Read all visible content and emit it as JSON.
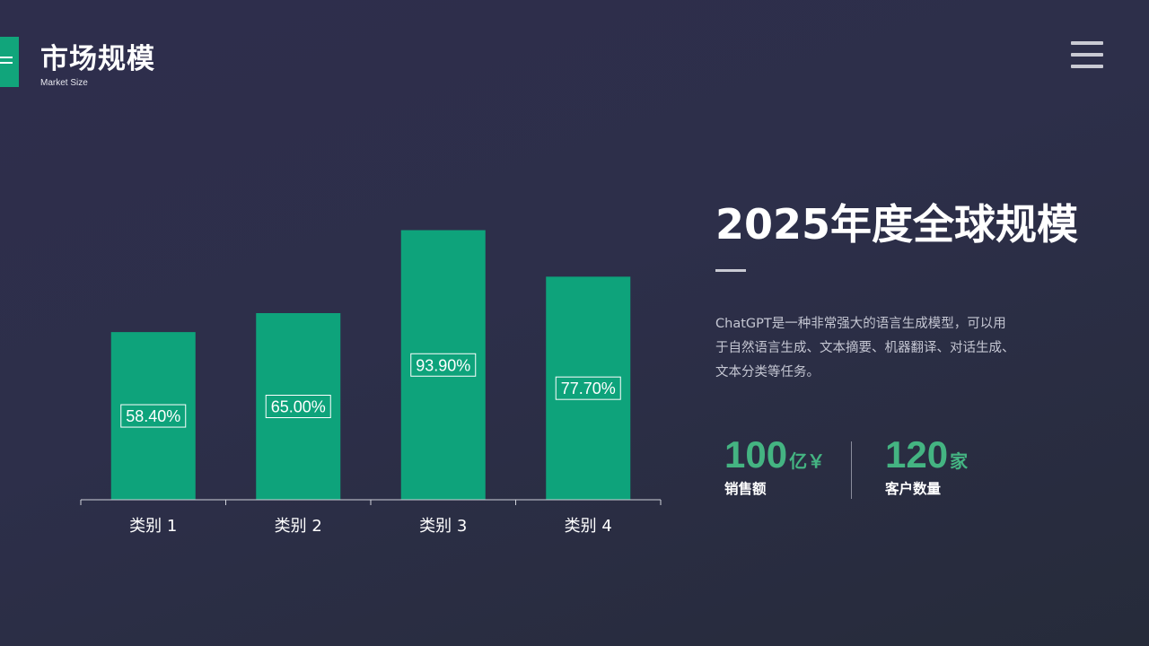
{
  "header": {
    "title": "市场规模",
    "subtitle": "Market Size"
  },
  "summary": {
    "heading": "2025年度全球规模",
    "description": "ChatGPT是一种非常强大的语言生成模型，可以用于自然语言生成、文本摘要、机器翻译、对话生成、文本分类等任务。"
  },
  "stats": [
    {
      "value": "100",
      "unit": "亿￥",
      "label": "销售额"
    },
    {
      "value": "120",
      "unit": "家",
      "label": "客户数量"
    }
  ],
  "colors": {
    "accent": "#11a57b",
    "bar": "#0ea37b",
    "stat": "#44b482",
    "heading": "#ffffff",
    "text_muted": "#c4c6d2"
  },
  "icons": {
    "menu": "hamburger-menu-icon",
    "accent": "accent-lines-icon"
  },
  "chart_data": {
    "type": "bar",
    "categories": [
      "类别 1",
      "类别 2",
      "类别 3",
      "类别 4"
    ],
    "values": [
      58.4,
      65.0,
      93.9,
      77.7
    ],
    "data_labels": [
      "58.40%",
      "65.00%",
      "93.90%",
      "77.70%"
    ],
    "ylim": [
      0,
      100
    ],
    "grid": false,
    "legend": "none",
    "title": "",
    "xlabel": "",
    "ylabel": ""
  }
}
